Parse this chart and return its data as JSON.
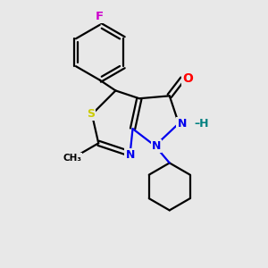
{
  "bg_color": "#e8e8e8",
  "bond_color": "#000000",
  "atom_colors": {
    "F": "#cc00cc",
    "O": "#ff0000",
    "N": "#0000ee",
    "S": "#cccc00",
    "H": "#008080",
    "C": "#000000"
  },
  "figsize": [
    3.0,
    3.0
  ],
  "dpi": 100
}
